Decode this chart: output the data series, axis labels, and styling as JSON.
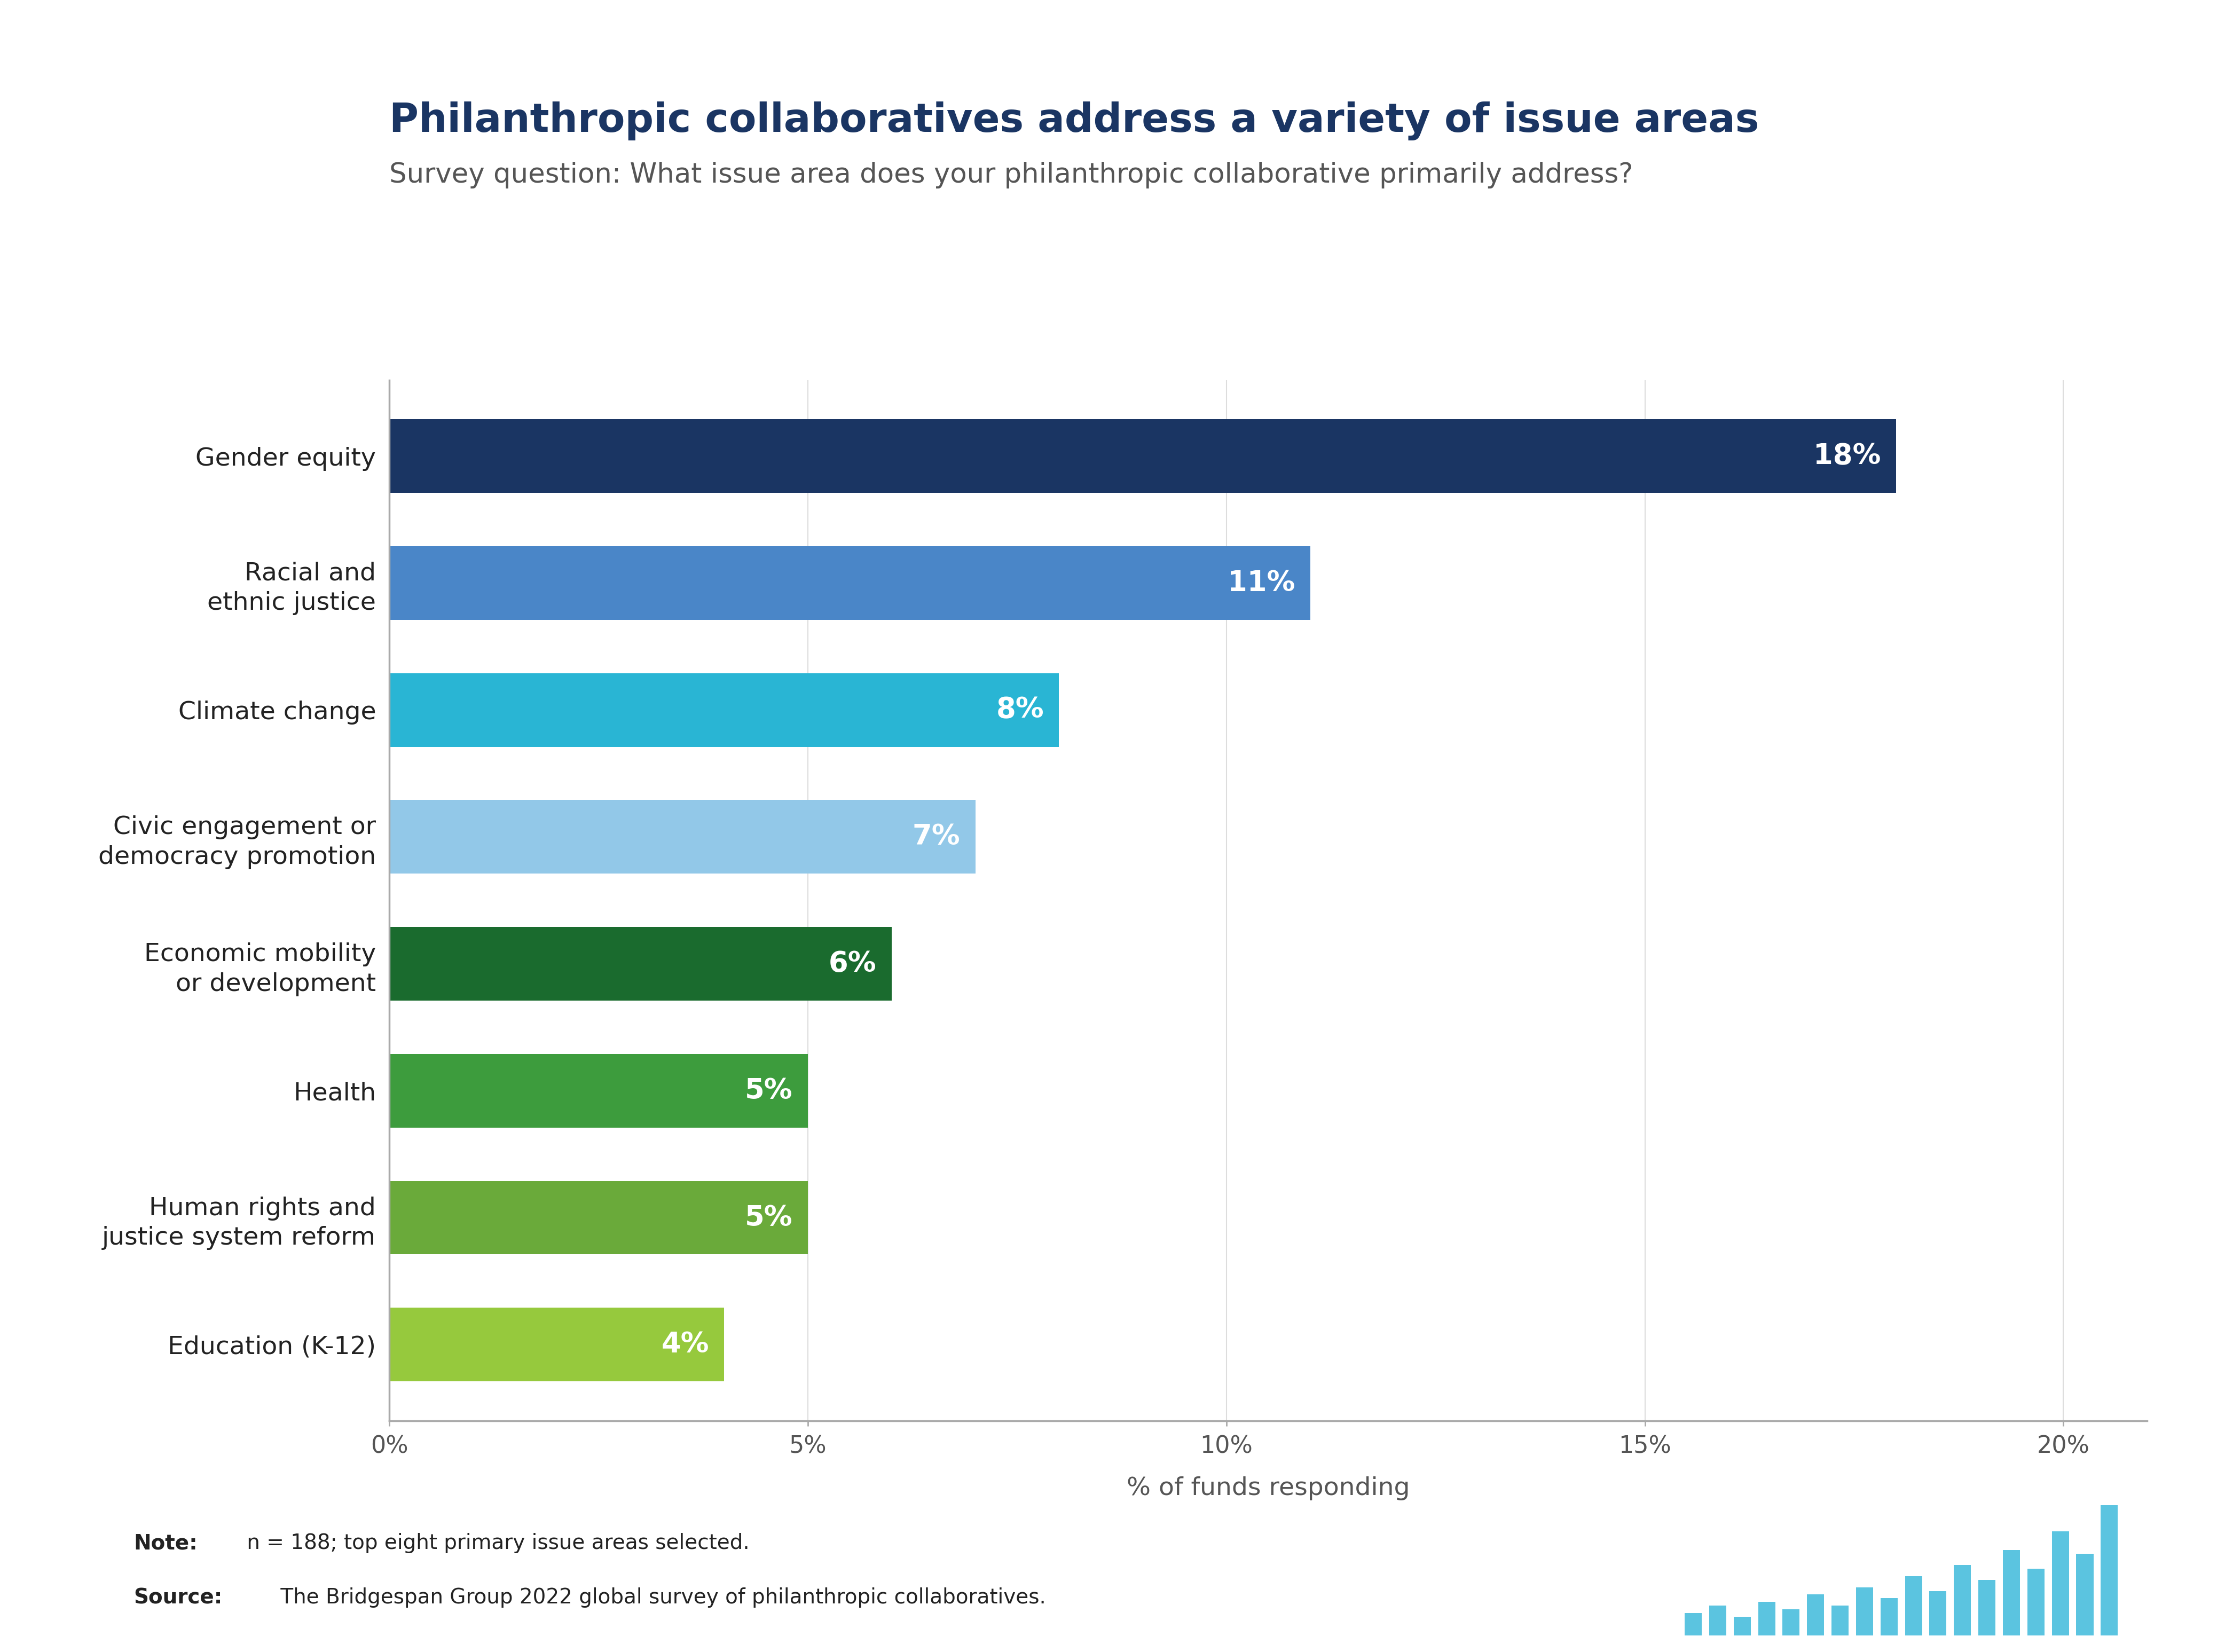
{
  "title": "Philanthropic collaboratives address a variety of issue areas",
  "subtitle": "Survey question: What issue area does your philanthropic collaborative primarily address?",
  "categories": [
    "Education (K-12)",
    "Human rights and\njustice system reform",
    "Health",
    "Economic mobility\nor development",
    "Civic engagement or\ndemocracy promotion",
    "Climate change",
    "Racial and\nethnic justice",
    "Gender equity"
  ],
  "values": [
    4,
    5,
    5,
    6,
    7,
    8,
    11,
    18
  ],
  "bar_colors": [
    "#96c93d",
    "#6aaa3a",
    "#3d9c3d",
    "#1a6b2e",
    "#92c8e8",
    "#29b5d4",
    "#4a86c8",
    "#1a3563"
  ],
  "bar_labels": [
    "4%",
    "5%",
    "5%",
    "6%",
    "7%",
    "8%",
    "11%",
    "18%"
  ],
  "xlabel": "% of funds responding",
  "xlim": [
    0,
    21
  ],
  "xticks": [
    0,
    5,
    10,
    15,
    20
  ],
  "xticklabels": [
    "0%",
    "5%",
    "10%",
    "15%",
    "20%"
  ],
  "title_color": "#1a3563",
  "subtitle_color": "#555555",
  "background_color": "#ffffff",
  "note_bold": "Note:",
  "note_rest": " n = 188; top eight primary issue areas selected.",
  "source_bold": "Source:",
  "source_rest": " The Bridgespan Group 2022 global survey of philanthropic collaboratives.",
  "label_color": "#ffffff",
  "axis_line_color": "#aaaaaa",
  "grid_color": "#dddddd"
}
